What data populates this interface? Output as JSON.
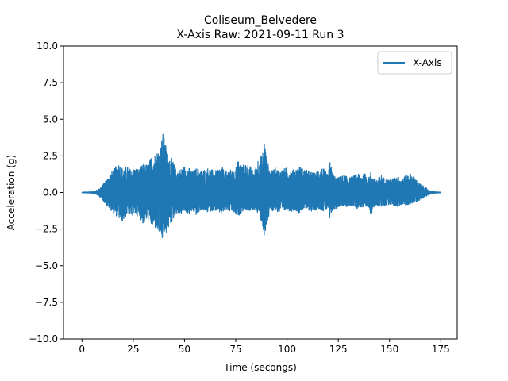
{
  "chart_data": {
    "type": "line",
    "title": "Coliseum_Belvedere",
    "subtitle": "X-Axis Raw: 2021-09-11 Run 3",
    "xlabel": "Time (secongs)",
    "ylabel": "Acceleration (g)",
    "xlim": [
      -9,
      183
    ],
    "ylim": [
      -10,
      10
    ],
    "x_ticks": [
      0,
      25,
      50,
      75,
      100,
      125,
      150,
      175
    ],
    "x_tick_labels": [
      "0",
      "25",
      "50",
      "75",
      "100",
      "125",
      "150",
      "175"
    ],
    "y_ticks": [
      10,
      7.5,
      5,
      2.5,
      0,
      -2.5,
      -5,
      -7.5,
      -10
    ],
    "y_tick_labels": [
      "10.0",
      "7.5",
      "5.0",
      "2.5",
      "0.0",
      "−2.5",
      "−5.0",
      "−7.5",
      "−10.0"
    ],
    "grid": false,
    "legend_position": "top-right",
    "series": [
      {
        "name": "X-Axis",
        "color": "#1f77b4",
        "envelope_x": [
          0,
          5,
          8,
          10,
          12,
          14,
          16,
          18,
          20,
          22,
          24,
          26,
          28,
          30,
          32,
          34,
          36,
          38,
          39.5,
          40.5,
          42,
          44,
          46,
          48,
          50,
          52,
          54,
          56,
          58,
          60,
          62,
          64,
          66,
          68,
          70,
          72,
          74,
          76,
          78,
          80,
          82,
          84,
          86,
          88,
          89,
          90,
          92,
          94,
          96,
          98,
          100,
          102,
          104,
          106,
          108,
          110,
          112,
          114,
          116,
          118,
          120,
          121,
          122,
          124,
          126,
          128,
          130,
          132,
          134,
          136,
          138,
          140,
          141,
          142,
          144,
          146,
          148,
          150,
          152,
          154,
          156,
          158,
          160,
          162,
          164,
          166,
          168,
          170,
          172,
          175
        ],
        "envelope_max": [
          0.02,
          0.05,
          0.2,
          0.5,
          0.9,
          1.3,
          1.7,
          2.0,
          1.6,
          1.8,
          1.5,
          1.7,
          1.6,
          2.0,
          1.9,
          2.5,
          2.7,
          3.0,
          4.1,
          3.5,
          2.6,
          2.3,
          1.5,
          1.6,
          1.8,
          1.7,
          1.4,
          1.7,
          1.5,
          1.6,
          1.7,
          1.5,
          1.5,
          1.8,
          1.4,
          1.6,
          1.3,
          2.2,
          1.9,
          2.0,
          1.8,
          1.4,
          2.4,
          2.6,
          3.7,
          2.4,
          1.4,
          1.7,
          1.5,
          1.6,
          1.7,
          1.5,
          1.6,
          1.8,
          1.6,
          1.5,
          1.4,
          1.3,
          1.8,
          1.6,
          1.2,
          2.3,
          1.4,
          1.0,
          1.1,
          1.2,
          1.0,
          1.1,
          1.3,
          1.2,
          1.3,
          1.0,
          1.5,
          1.0,
          0.9,
          1.2,
          0.9,
          0.9,
          1.0,
          1.1,
          0.9,
          1.2,
          1.3,
          1.1,
          0.7,
          0.5,
          0.3,
          0.1,
          0.05,
          0.02
        ],
        "envelope_min": [
          -0.02,
          -0.05,
          -0.2,
          -0.5,
          -0.9,
          -1.2,
          -1.5,
          -1.8,
          -2.0,
          -1.5,
          -1.6,
          -1.5,
          -1.7,
          -2.2,
          -1.8,
          -2.3,
          -2.5,
          -2.9,
          -3.4,
          -3.0,
          -2.5,
          -2.0,
          -1.4,
          -1.5,
          -1.3,
          -1.5,
          -1.3,
          -1.6,
          -1.2,
          -1.3,
          -1.4,
          -1.2,
          -1.3,
          -1.5,
          -1.2,
          -1.3,
          -1.4,
          -1.7,
          -1.3,
          -1.2,
          -1.3,
          -1.2,
          -1.5,
          -2.2,
          -3.5,
          -2.3,
          -1.3,
          -1.2,
          -1.4,
          -1.3,
          -1.2,
          -1.3,
          -1.2,
          -1.4,
          -1.1,
          -1.2,
          -1.3,
          -1.2,
          -1.1,
          -1.3,
          -1.1,
          -2.2,
          -1.3,
          -1.1,
          -0.9,
          -1.0,
          -1.0,
          -0.9,
          -1.1,
          -1.0,
          -1.2,
          -1.0,
          -1.6,
          -1.1,
          -0.9,
          -1.0,
          -0.9,
          -0.8,
          -0.9,
          -1.0,
          -0.8,
          -0.9,
          -0.8,
          -0.7,
          -0.6,
          -0.4,
          -0.25,
          -0.1,
          -0.05,
          -0.02
        ]
      }
    ]
  }
}
